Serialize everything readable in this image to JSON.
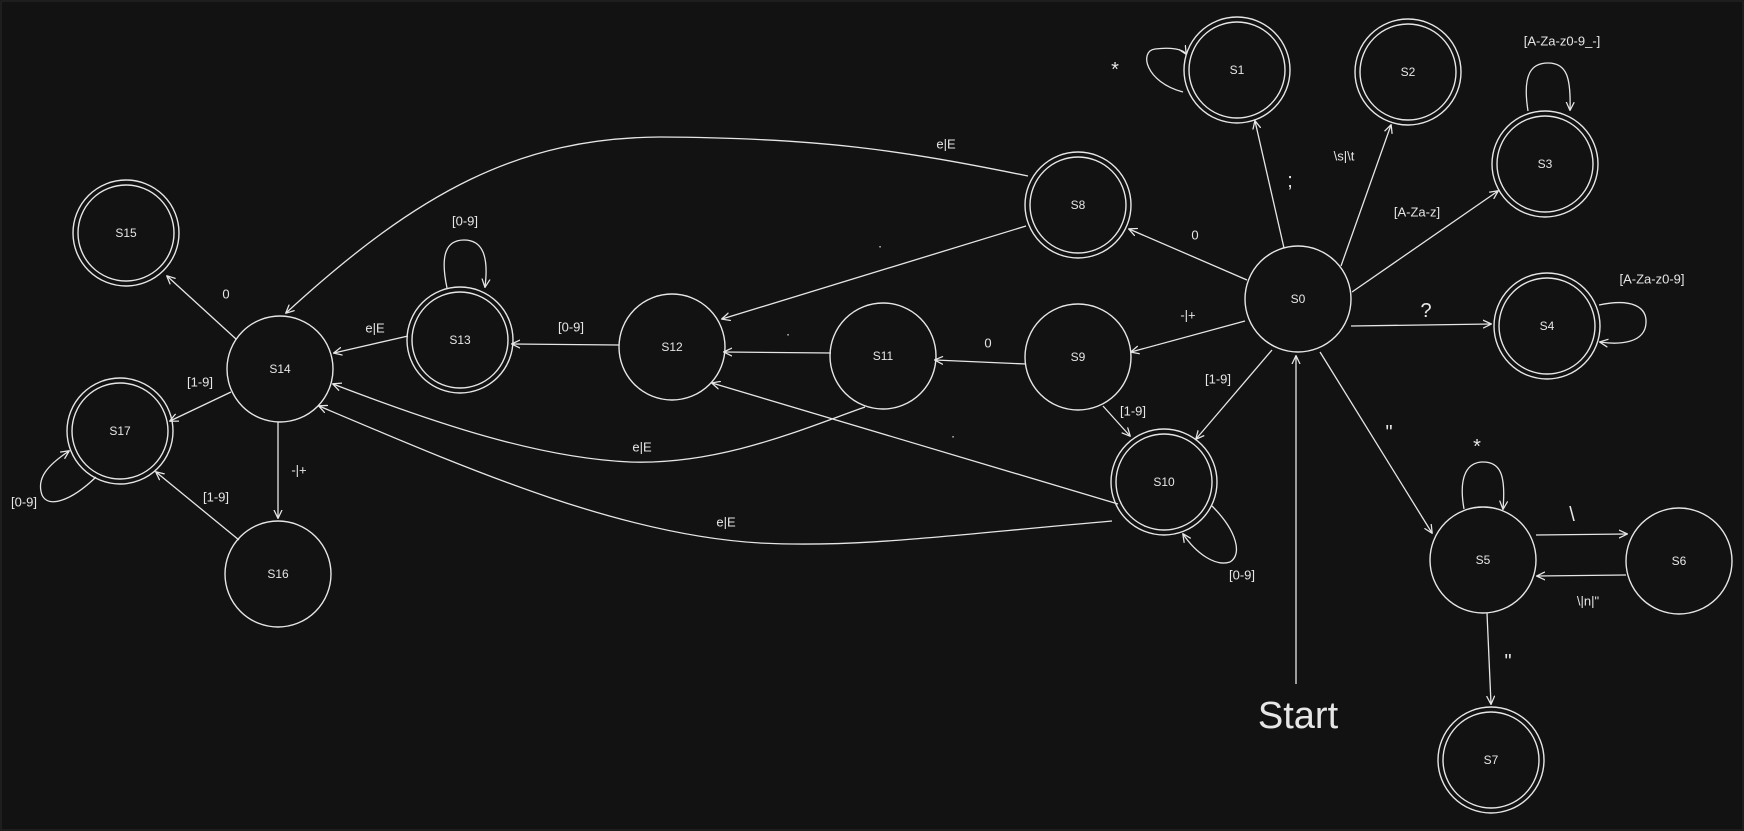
{
  "diagram": {
    "start_label": "Start",
    "colors": {
      "background": "#121212",
      "stroke": "#e6e6e6"
    },
    "states": [
      {
        "id": "S0",
        "label": "S0",
        "accepting": false
      },
      {
        "id": "S1",
        "label": "S1",
        "accepting": true
      },
      {
        "id": "S2",
        "label": "S2",
        "accepting": true
      },
      {
        "id": "S3",
        "label": "S3",
        "accepting": true
      },
      {
        "id": "S4",
        "label": "S4",
        "accepting": true
      },
      {
        "id": "S5",
        "label": "S5",
        "accepting": false
      },
      {
        "id": "S6",
        "label": "S6",
        "accepting": false
      },
      {
        "id": "S7",
        "label": "S7",
        "accepting": true
      },
      {
        "id": "S8",
        "label": "S8",
        "accepting": true
      },
      {
        "id": "S9",
        "label": "S9",
        "accepting": false
      },
      {
        "id": "S10",
        "label": "S10",
        "accepting": true
      },
      {
        "id": "S11",
        "label": "S11",
        "accepting": false
      },
      {
        "id": "S12",
        "label": "S12",
        "accepting": false
      },
      {
        "id": "S13",
        "label": "S13",
        "accepting": true
      },
      {
        "id": "S14",
        "label": "S14",
        "accepting": false
      },
      {
        "id": "S15",
        "label": "S15",
        "accepting": true
      },
      {
        "id": "S16",
        "label": "S16",
        "accepting": false
      },
      {
        "id": "S17",
        "label": "S17",
        "accepting": true
      }
    ],
    "transitions": [
      {
        "id": "t1",
        "from": "S0",
        "to": "S1",
        "label": ";"
      },
      {
        "id": "t2",
        "from": "S0",
        "to": "S2",
        "label": "\\s|\\t"
      },
      {
        "id": "t3",
        "from": "S0",
        "to": "S3",
        "label": "[A-Za-z]"
      },
      {
        "id": "t4",
        "from": "S0",
        "to": "S4",
        "label": "?"
      },
      {
        "id": "t5",
        "from": "S0",
        "to": "S5",
        "label": "\""
      },
      {
        "id": "t6",
        "from": "S0",
        "to": "S8",
        "label": "0"
      },
      {
        "id": "t7",
        "from": "S0",
        "to": "S9",
        "label": "-|+"
      },
      {
        "id": "t8",
        "from": "S0",
        "to": "S10",
        "label": "[1-9]"
      },
      {
        "id": "t9",
        "from": "S1",
        "to": "S1",
        "label": "*"
      },
      {
        "id": "t10",
        "from": "S3",
        "to": "S3",
        "label": "[A-Za-z0-9_-]"
      },
      {
        "id": "t11",
        "from": "S4",
        "to": "S4",
        "label": "[A-Za-z0-9]"
      },
      {
        "id": "t12",
        "from": "S5",
        "to": "S5",
        "label": "*"
      },
      {
        "id": "t13",
        "from": "S5",
        "to": "S6",
        "label": "\\"
      },
      {
        "id": "t14",
        "from": "S6",
        "to": "S5",
        "label": "\\|n|\""
      },
      {
        "id": "t15",
        "from": "S5",
        "to": "S7",
        "label": "\""
      },
      {
        "id": "t16",
        "from": "S8",
        "to": "S12",
        "label": "."
      },
      {
        "id": "t17",
        "from": "S8",
        "to": "S14",
        "label": "e|E"
      },
      {
        "id": "t18",
        "from": "S9",
        "to": "S11",
        "label": "0"
      },
      {
        "id": "t19",
        "from": "S9",
        "to": "S10",
        "label": "[1-9]"
      },
      {
        "id": "t20",
        "from": "S10",
        "to": "S10",
        "label": "[0-9]"
      },
      {
        "id": "t21",
        "from": "S10",
        "to": "S12",
        "label": "."
      },
      {
        "id": "t22",
        "from": "S10",
        "to": "S14",
        "label": "e|E"
      },
      {
        "id": "t23",
        "from": "S11",
        "to": "S12",
        "label": "."
      },
      {
        "id": "t24",
        "from": "S11",
        "to": "S14",
        "label": "e|E"
      },
      {
        "id": "t25",
        "from": "S12",
        "to": "S13",
        "label": "[0-9]"
      },
      {
        "id": "t26",
        "from": "S13",
        "to": "S13",
        "label": "[0-9]"
      },
      {
        "id": "t27",
        "from": "S13",
        "to": "S14",
        "label": "e|E"
      },
      {
        "id": "t28",
        "from": "S14",
        "to": "S15",
        "label": "0"
      },
      {
        "id": "t29",
        "from": "S14",
        "to": "S17",
        "label": "[1-9]"
      },
      {
        "id": "t30",
        "from": "S14",
        "to": "S16",
        "label": "-|+"
      },
      {
        "id": "t31",
        "from": "S16",
        "to": "S17",
        "label": "[1-9]"
      },
      {
        "id": "t32",
        "from": "S17",
        "to": "S17",
        "label": "[0-9]"
      }
    ]
  }
}
